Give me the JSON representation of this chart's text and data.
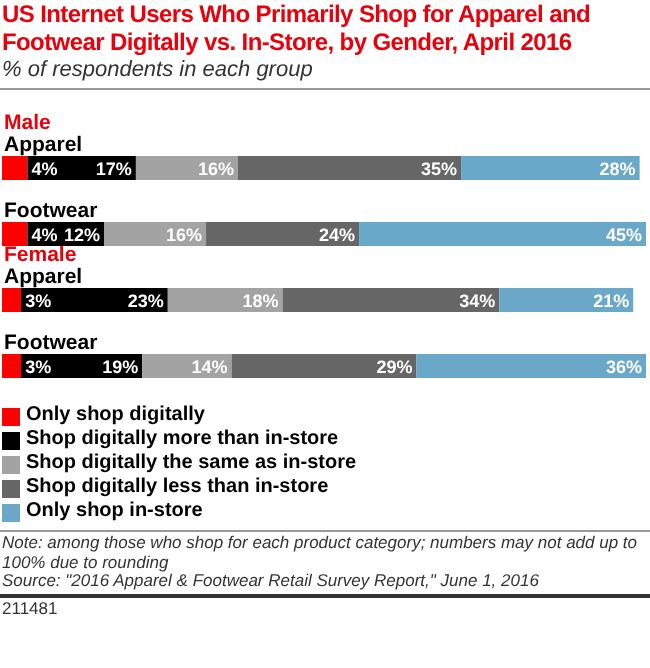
{
  "chart_data": {
    "type": "bar",
    "orientation": "horizontal",
    "stacked": true,
    "title": "US Internet Users Who Primarily Shop for Apparel and Footwear Digitally vs. In-Store, by Gender, April 2016",
    "subtitle": "% of respondents in each group",
    "categories": [
      "Apparel",
      "Footwear",
      "Apparel",
      "Footwear"
    ],
    "series": [
      {
        "name": "Only shop digitally",
        "color": "#ff0000",
        "values": [
          4,
          4,
          3,
          3
        ],
        "value_labels": [
          "4%",
          "4%",
          "3%",
          "3%"
        ]
      },
      {
        "name": "Shop digitally more than in-store",
        "color": "#000000",
        "values": [
          17,
          12,
          23,
          19
        ],
        "value_labels": [
          "17%",
          "12%",
          "23%",
          "19%"
        ]
      },
      {
        "name": "Shop digitally the same as in-store",
        "color": "#a3a3a3",
        "values": [
          16,
          16,
          18,
          14
        ],
        "value_labels": [
          "16%",
          "16%",
          "18%",
          "14%"
        ]
      },
      {
        "name": "Shop digitally less than in-store",
        "color": "#666666",
        "values": [
          35,
          24,
          34,
          29
        ],
        "value_labels": [
          "35%",
          "24%",
          "34%",
          "29%"
        ]
      },
      {
        "name": "Only shop in-store",
        "color": "#6aa8c9",
        "values": [
          28,
          45,
          21,
          36
        ],
        "value_labels": [
          "28%",
          "45%",
          "21%",
          "36%"
        ]
      }
    ],
    "legend": "bottom left",
    "annotations": [
      "Male",
      "Female",
      "Note: among those who shop for each product category; numbers may not add up to 100% due to rounding",
      "Source: \"2016 Apparel & Footwear Retail Survey Report,\" June 1, 2016",
      "211481"
    ]
  }
}
